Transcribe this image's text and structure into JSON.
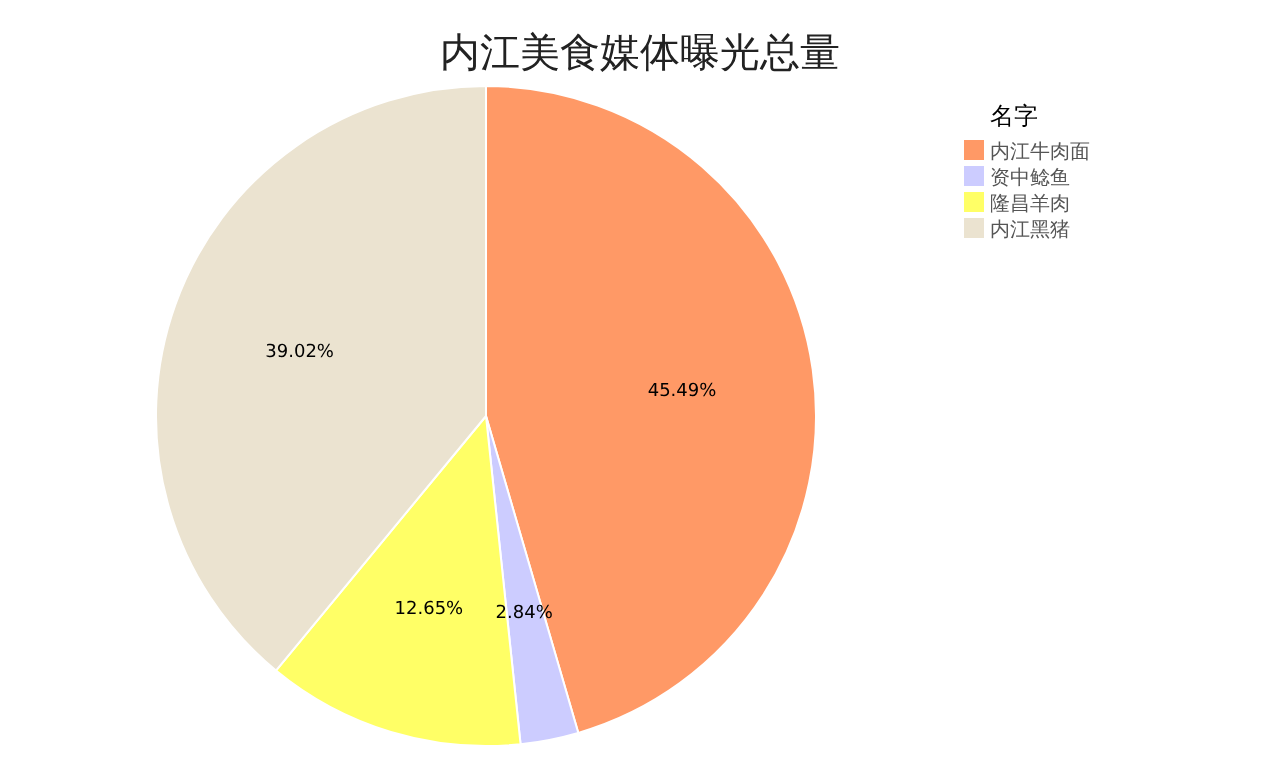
{
  "chart_data": {
    "type": "pie",
    "title": "内江美食媒体曝光总量",
    "legend_title": "名字",
    "legend": "top right",
    "categories": [
      "内江牛肉面",
      "资中鲶鱼",
      "隆昌羊肉",
      "内江黑猪"
    ],
    "values": [
      45.49,
      2.84,
      12.65,
      39.02
    ],
    "colors": [
      "#ff9966",
      "#ccccff",
      "#ffff66",
      "#ebe3d0"
    ],
    "value_labels": [
      "45.49%",
      "2.84%",
      "12.65%",
      "39.02%"
    ]
  }
}
